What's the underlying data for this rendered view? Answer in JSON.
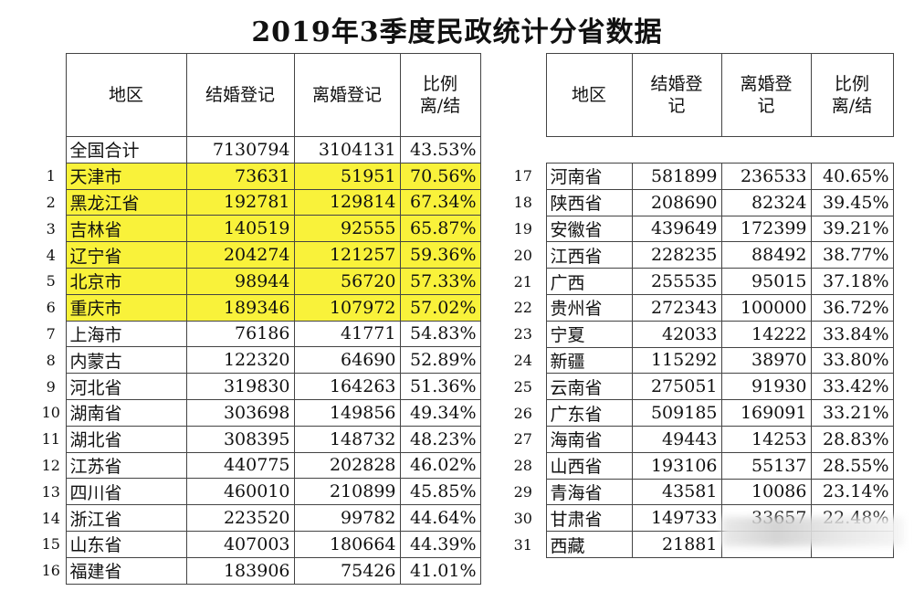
{
  "title": "2019年3季度民政统计分省数据",
  "headers": {
    "region": "地区",
    "marriage": "结婚登记",
    "divorce": "离婚登记",
    "ratio_l1": "比例",
    "ratio_l2": "离/结",
    "marriage_r1": "结婚登",
    "marriage_r2": "记",
    "divorce_r1": "离婚登",
    "divorce_r2": "记"
  },
  "total": {
    "name": "全国合计",
    "marriage": "7130794",
    "divorce": "3104131",
    "ratio": "43.53%"
  },
  "left_rows": [
    {
      "idx": "1",
      "name": "天津市",
      "marriage": "73631",
      "divorce": "51951",
      "ratio": "70.56%",
      "hl": true
    },
    {
      "idx": "2",
      "name": "黑龙江省",
      "marriage": "192781",
      "divorce": "129814",
      "ratio": "67.34%",
      "hl": true
    },
    {
      "idx": "3",
      "name": "吉林省",
      "marriage": "140519",
      "divorce": "92555",
      "ratio": "65.87%",
      "hl": true
    },
    {
      "idx": "4",
      "name": "辽宁省",
      "marriage": "204274",
      "divorce": "121257",
      "ratio": "59.36%",
      "hl": true
    },
    {
      "idx": "5",
      "name": "北京市",
      "marriage": "98944",
      "divorce": "56720",
      "ratio": "57.33%",
      "hl": true
    },
    {
      "idx": "6",
      "name": "重庆市",
      "marriage": "189346",
      "divorce": "107972",
      "ratio": "57.02%",
      "hl": true
    },
    {
      "idx": "7",
      "name": "上海市",
      "marriage": "76186",
      "divorce": "41771",
      "ratio": "54.83%",
      "hl": false
    },
    {
      "idx": "8",
      "name": "内蒙古",
      "marriage": "122320",
      "divorce": "64690",
      "ratio": "52.89%",
      "hl": false
    },
    {
      "idx": "9",
      "name": "河北省",
      "marriage": "319830",
      "divorce": "164263",
      "ratio": "51.36%",
      "hl": false
    },
    {
      "idx": "10",
      "name": "湖南省",
      "marriage": "303698",
      "divorce": "149856",
      "ratio": "49.34%",
      "hl": false
    },
    {
      "idx": "11",
      "name": "湖北省",
      "marriage": "308395",
      "divorce": "148732",
      "ratio": "48.23%",
      "hl": false
    },
    {
      "idx": "12",
      "name": "江苏省",
      "marriage": "440775",
      "divorce": "202828",
      "ratio": "46.02%",
      "hl": false
    },
    {
      "idx": "13",
      "name": "四川省",
      "marriage": "460010",
      "divorce": "210899",
      "ratio": "45.85%",
      "hl": false
    },
    {
      "idx": "14",
      "name": "浙江省",
      "marriage": "223520",
      "divorce": "99782",
      "ratio": "44.64%",
      "hl": false
    },
    {
      "idx": "15",
      "name": "山东省",
      "marriage": "407003",
      "divorce": "180664",
      "ratio": "44.39%",
      "hl": false
    },
    {
      "idx": "16",
      "name": "福建省",
      "marriage": "183906",
      "divorce": "75426",
      "ratio": "41.01%",
      "hl": false
    }
  ],
  "right_rows": [
    {
      "idx": "17",
      "name": "河南省",
      "marriage": "581899",
      "divorce": "236533",
      "ratio": "40.65%"
    },
    {
      "idx": "18",
      "name": "陕西省",
      "marriage": "208690",
      "divorce": "82324",
      "ratio": "39.45%"
    },
    {
      "idx": "19",
      "name": "安徽省",
      "marriage": "439649",
      "divorce": "172399",
      "ratio": "39.21%"
    },
    {
      "idx": "20",
      "name": "江西省",
      "marriage": "228235",
      "divorce": "88492",
      "ratio": "38.77%"
    },
    {
      "idx": "21",
      "name": "广西",
      "marriage": "255535",
      "divorce": "95015",
      "ratio": "37.18%"
    },
    {
      "idx": "22",
      "name": "贵州省",
      "marriage": "272343",
      "divorce": "100000",
      "ratio": "36.72%"
    },
    {
      "idx": "23",
      "name": "宁夏",
      "marriage": "42033",
      "divorce": "14222",
      "ratio": "33.84%"
    },
    {
      "idx": "24",
      "name": "新疆",
      "marriage": "115292",
      "divorce": "38970",
      "ratio": "33.80%"
    },
    {
      "idx": "25",
      "name": "云南省",
      "marriage": "275051",
      "divorce": "91930",
      "ratio": "33.42%"
    },
    {
      "idx": "26",
      "name": "广东省",
      "marriage": "509185",
      "divorce": "169091",
      "ratio": "33.21%"
    },
    {
      "idx": "27",
      "name": "海南省",
      "marriage": "49443",
      "divorce": "14253",
      "ratio": "28.83%"
    },
    {
      "idx": "28",
      "name": "山西省",
      "marriage": "193106",
      "divorce": "55137",
      "ratio": "28.55%"
    },
    {
      "idx": "29",
      "name": "青海省",
      "marriage": "43581",
      "divorce": "10086",
      "ratio": "23.14%"
    },
    {
      "idx": "30",
      "name": "甘肃省",
      "marriage": "149733",
      "divorce": "33657",
      "ratio": "22.48%"
    },
    {
      "idx": "31",
      "name": "西藏",
      "marriage": "21881",
      "divorce": "",
      "ratio": ""
    }
  ],
  "colors": {
    "highlight": "#f9f23a"
  }
}
